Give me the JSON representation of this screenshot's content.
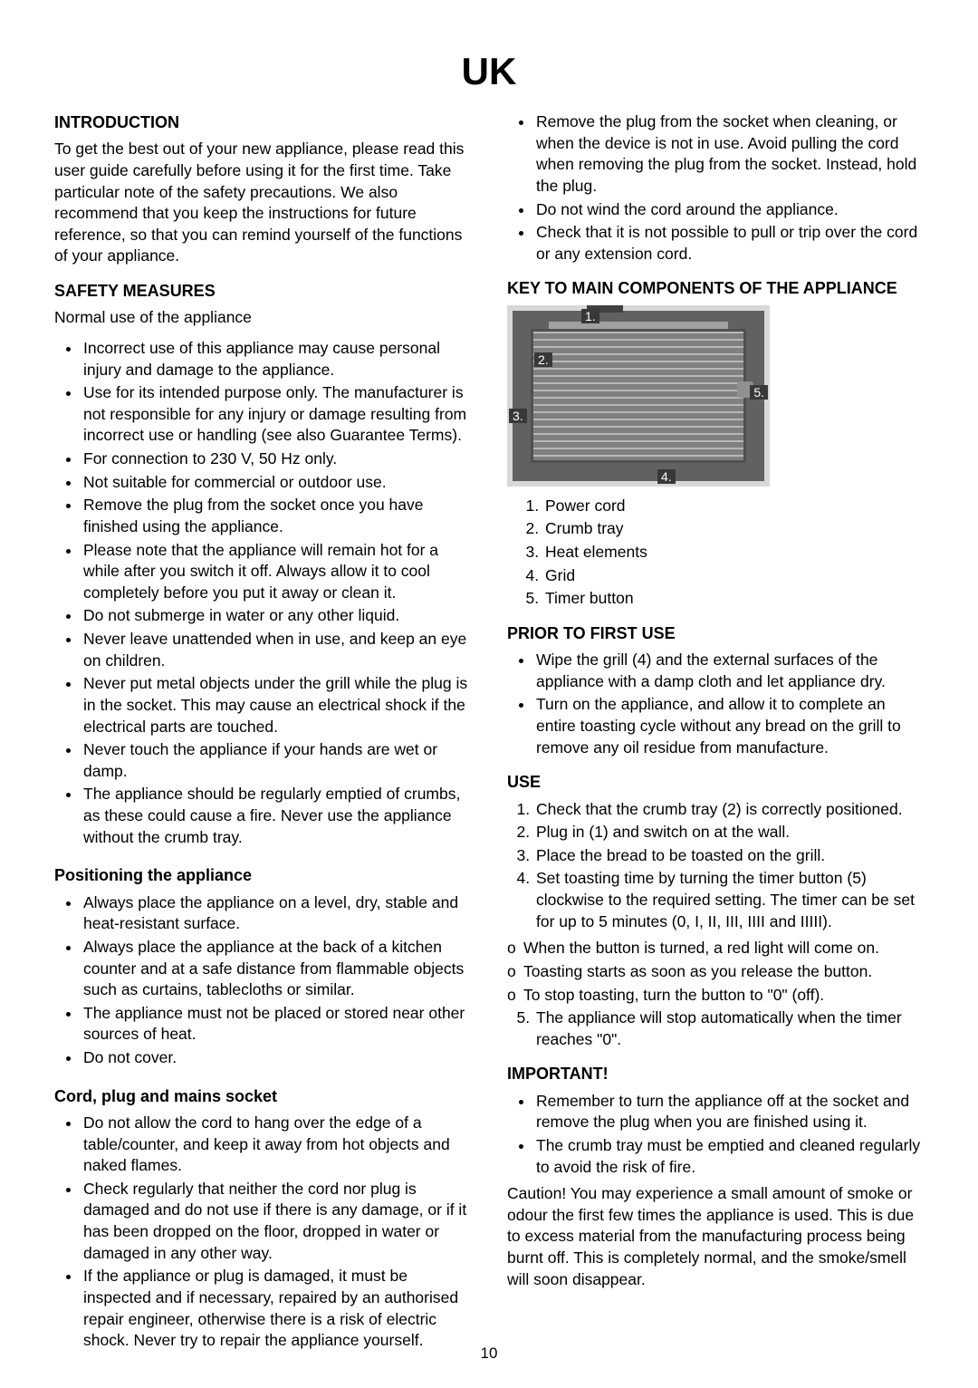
{
  "page": {
    "title": "UK",
    "number": "10"
  },
  "col1": {
    "intro_h": "INTRODUCTION",
    "intro_p": "To get the best out of your new appliance, please read this user guide carefully before using it for the first time. Take particular note of the safety precautions. We also recommend that you keep the instructions for future reference, so that you can remind yourself of the functions of your appliance.",
    "safety_h": "SAFETY MEASURES",
    "safety_sub": "Normal use of the appliance",
    "safety_items": [
      "Incorrect use of this appliance may cause personal injury and damage to the appliance.",
      "Use for its intended purpose only. The manufacturer is not responsible for any injury or damage resulting from incorrect use or handling (see also Guarantee Terms).",
      "For connection to 230 V, 50 Hz only.",
      "Not suitable for commercial or outdoor use.",
      "Remove the plug from the socket once you have finished using the appliance.",
      "Please note that the appliance will remain hot for a while after you switch it off. Always allow it to cool completely before you put it away or clean it.",
      "Do not submerge in water or any other liquid.",
      "Never leave unattended when in use, and keep an eye on children.",
      "Never put metal objects under the grill while the plug is in the socket. This may cause an electrical shock if the electrical parts are touched.",
      "Never touch the appliance if your hands are wet or damp.",
      "The appliance should be regularly emptied of crumbs, as these could cause a fire. Never use the appliance without the crumb tray."
    ],
    "pos_h": "Positioning the appliance",
    "pos_items": [
      "Always place the appliance on a level, dry, stable and heat-resistant surface.",
      "Always place the appliance at the back of a kitchen counter and at a safe distance from flammable objects such as curtains, tablecloths or similar.",
      "The appliance must not be placed or stored near other sources of heat.",
      "Do not cover."
    ],
    "cord_h": "Cord, plug and mains socket",
    "cord_items": [
      "Do not allow the cord to hang over the edge of a table/counter, and keep it away from hot objects and naked flames.",
      "Check regularly that neither the cord nor plug is damaged and do not use if there is any damage, or if it has been dropped on the floor, dropped in water or damaged in any other way.",
      "If the appliance or plug is damaged, it must be inspected and if necessary, repaired by an authorised repair engineer, otherwise there is a risk of electric shock. Never try to repair the appliance yourself."
    ]
  },
  "col2": {
    "cord_cont": [
      "Remove the plug from the socket when cleaning, or when the device is not in use. Avoid pulling the cord when removing the plug from the socket. Instead, hold the plug.",
      "Do not wind the cord around the appliance.",
      "Check that it is not possible to pull or trip over the cord or any extension cord."
    ],
    "key_h": "KEY TO MAIN COMPONENTS OF THE APPLIANCE",
    "diagram_labels": {
      "l1": "1.",
      "l2": "2.",
      "l3": "3.",
      "l4": "4.",
      "l5": "5."
    },
    "components": [
      "Power cord",
      "Crumb tray",
      "Heat elements",
      "Grid",
      "Timer button"
    ],
    "prior_h": "PRIOR TO FIRST USE",
    "prior_items": [
      "Wipe the grill (4) and the external surfaces of the appliance with a damp cloth and let appliance dry.",
      "Turn on the appliance, and allow it to complete an entire toasting cycle without any bread on the grill to remove any oil residue from manufacture."
    ],
    "use_h": "USE",
    "use_ol": [
      "Check that the crumb tray (2) is correctly positioned.",
      "Plug in (1) and switch on at the wall.",
      "Place the bread to be toasted on the grill.",
      "Set toasting time by turning the timer button (5) clockwise to the required setting. The timer can be set for up to 5 minutes (0, I, II, III, IIII and IIIII)."
    ],
    "use_sub": [
      "When the button is turned, a red light will come on.",
      "Toasting starts as soon as you release the button.",
      "To stop toasting, turn the button to \"0\" (off)."
    ],
    "use_ol2": [
      "The appliance will stop automatically when the timer reaches \"0\"."
    ],
    "important_h": "IMPORTANT!",
    "important_items": [
      "Remember to turn the appliance off at the socket and remove the plug when you are finished using it.",
      "The crumb tray must be emptied and cleaned regularly to avoid the risk of fire."
    ],
    "caution_p": "Caution! You may experience a small amount of smoke or odour the first few times the appliance is used. This is due to excess material from the manufacturing process being burnt off. This is completely normal, and the smoke/smell will soon disappear."
  }
}
